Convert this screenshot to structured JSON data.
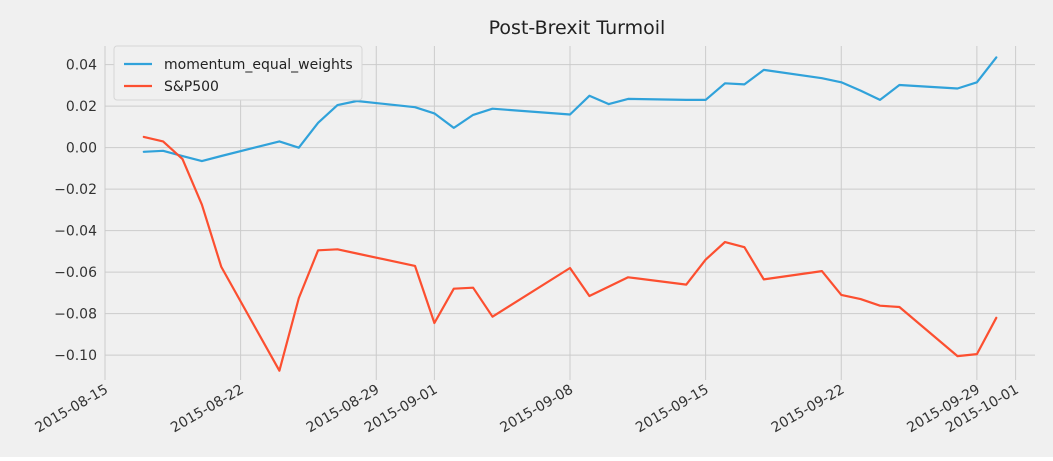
{
  "chart_data": {
    "type": "line",
    "title": "Post-Brexit Turmoil",
    "xlabel": "",
    "ylabel": "",
    "ylim": [
      -0.112,
      0.049
    ],
    "xlim": [
      "2015-08-15",
      "2015-10-02"
    ],
    "yticks": [
      {
        "value": 0.04,
        "label": "0.04"
      },
      {
        "value": 0.02,
        "label": "0.02"
      },
      {
        "value": 0.0,
        "label": "0.00"
      },
      {
        "value": -0.02,
        "label": "−0.02"
      },
      {
        "value": -0.04,
        "label": "−0.04"
      },
      {
        "value": -0.06,
        "label": "−0.06"
      },
      {
        "value": -0.08,
        "label": "−0.08"
      },
      {
        "value": -0.1,
        "label": "−0.10"
      }
    ],
    "xticks": [
      {
        "value": "2015-08-15",
        "label": "2015-08-15"
      },
      {
        "value": "2015-08-22",
        "label": "2015-08-22"
      },
      {
        "value": "2015-08-29",
        "label": "2015-08-29"
      },
      {
        "value": "2015-09-01",
        "label": "2015-09-01"
      },
      {
        "value": "2015-09-08",
        "label": "2015-09-08"
      },
      {
        "value": "2015-09-15",
        "label": "2015-09-15"
      },
      {
        "value": "2015-09-22",
        "label": "2015-09-22"
      },
      {
        "value": "2015-09-29",
        "label": "2015-09-29"
      },
      {
        "value": "2015-10-01",
        "label": "2015-10-01"
      }
    ],
    "grid": true,
    "legend_position": "top-left",
    "colors": {
      "background": "#f0f0f0",
      "grid": "#cbcbcb",
      "text": "#222222",
      "axis_text": "#333333"
    },
    "x": [
      "2015-08-17",
      "2015-08-18",
      "2015-08-19",
      "2015-08-20",
      "2015-08-21",
      "2015-08-24",
      "2015-08-25",
      "2015-08-26",
      "2015-08-27",
      "2015-08-28",
      "2015-08-31",
      "2015-09-01",
      "2015-09-02",
      "2015-09-03",
      "2015-09-04",
      "2015-09-08",
      "2015-09-09",
      "2015-09-10",
      "2015-09-11",
      "2015-09-14",
      "2015-09-15",
      "2015-09-16",
      "2015-09-17",
      "2015-09-18",
      "2015-09-21",
      "2015-09-22",
      "2015-09-23",
      "2015-09-24",
      "2015-09-25",
      "2015-09-28",
      "2015-09-29",
      "2015-09-30"
    ],
    "series": [
      {
        "name": "momentum_equal_weights",
        "color": "#30a2da",
        "values": [
          -0.002,
          -0.0015,
          -0.004,
          -0.0065,
          -0.004,
          0.003,
          0.0,
          0.012,
          0.0205,
          0.0225,
          0.0195,
          0.0165,
          0.0095,
          0.0158,
          0.0188,
          0.016,
          0.025,
          0.021,
          0.0235,
          0.023,
          0.023,
          0.031,
          0.0305,
          0.0375,
          0.0335,
          0.0315,
          0.0275,
          0.023,
          0.0302,
          0.0285,
          0.0315,
          0.0435
        ]
      },
      {
        "name": "S&P500",
        "color": "#fc4f30",
        "values": [
          0.0052,
          0.003,
          -0.0055,
          -0.0275,
          -0.0575,
          -0.1075,
          -0.0725,
          -0.0495,
          -0.049,
          -0.051,
          -0.057,
          -0.0845,
          -0.068,
          -0.0675,
          -0.0815,
          -0.058,
          -0.0715,
          -0.067,
          -0.0625,
          -0.066,
          -0.054,
          -0.0455,
          -0.048,
          -0.0635,
          -0.0595,
          -0.071,
          -0.073,
          -0.0762,
          -0.0768,
          -0.1005,
          -0.0995,
          -0.082
        ]
      }
    ]
  }
}
